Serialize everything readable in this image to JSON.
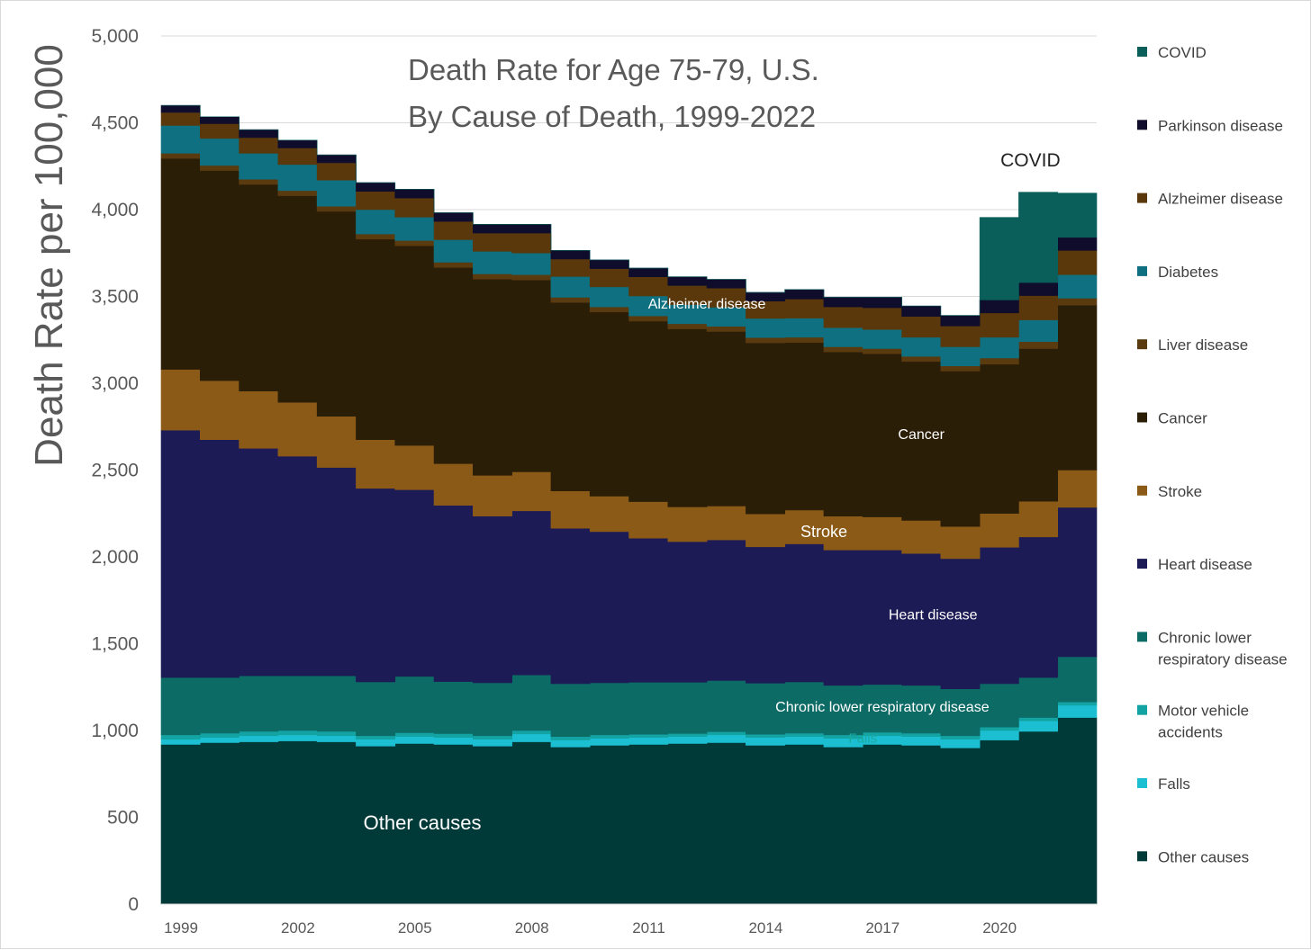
{
  "chart_data": {
    "type": "area",
    "stacked": true,
    "step": true,
    "title_lines": [
      "Death Rate for Age 75-79, U.S.",
      "By Cause of Death, 1999-2022"
    ],
    "ylabel": "Death Rate per 100,000",
    "xlabel": "",
    "ylim": [
      0,
      5000
    ],
    "yticks": [
      0,
      500,
      1000,
      1500,
      2000,
      2500,
      3000,
      3500,
      4000,
      4500,
      5000
    ],
    "ytick_labels": [
      "0",
      "500",
      "1,000",
      "1,500",
      "2,000",
      "2,500",
      "3,000",
      "3,500",
      "4,000",
      "4,500",
      "5,000"
    ],
    "grid": true,
    "legend_position": "right",
    "x": [
      1999,
      2000,
      2001,
      2002,
      2003,
      2004,
      2005,
      2006,
      2007,
      2008,
      2009,
      2010,
      2011,
      2012,
      2013,
      2014,
      2015,
      2016,
      2017,
      2018,
      2019,
      2020,
      2021,
      2022
    ],
    "xtick_labels": [
      "1999",
      "2002",
      "2005",
      "2008",
      "2011",
      "2014",
      "2017",
      "2020"
    ],
    "xtick_years": [
      1999,
      2002,
      2005,
      2008,
      2011,
      2014,
      2017,
      2020
    ],
    "series": [
      {
        "name": "Other causes",
        "color": "#003a38",
        "values": [
          920,
          930,
          935,
          940,
          935,
          910,
          925,
          920,
          910,
          935,
          905,
          915,
          920,
          925,
          930,
          915,
          920,
          905,
          920,
          915,
          900,
          945,
          995,
          1075
        ]
      },
      {
        "name": "Falls",
        "color": "#1cbfd1",
        "values": [
          30,
          30,
          35,
          35,
          35,
          40,
          40,
          40,
          40,
          45,
          40,
          40,
          40,
          40,
          45,
          45,
          45,
          50,
          50,
          50,
          50,
          55,
          60,
          70
        ]
      },
      {
        "name": "Motor vehicle accidents",
        "color": "#13a3a3",
        "values": [
          25,
          25,
          25,
          25,
          25,
          20,
          22,
          22,
          20,
          20,
          20,
          20,
          18,
          18,
          18,
          18,
          20,
          20,
          20,
          20,
          20,
          20,
          20,
          20
        ]
      },
      {
        "name": "Chronic lower respiratory disease",
        "color": "#0d6b66",
        "values": [
          330,
          320,
          320,
          315,
          320,
          310,
          325,
          300,
          305,
          320,
          305,
          300,
          300,
          295,
          295,
          295,
          295,
          285,
          275,
          275,
          270,
          250,
          230,
          260
        ]
      },
      {
        "name": "Heart disease",
        "color": "#1c1b55",
        "values": [
          1425,
          1370,
          1310,
          1265,
          1200,
          1115,
          1075,
          1015,
          960,
          945,
          895,
          870,
          830,
          810,
          810,
          785,
          795,
          780,
          775,
          760,
          750,
          785,
          810,
          860
        ]
      },
      {
        "name": "Stroke",
        "color": "#8b5a17",
        "values": [
          350,
          340,
          330,
          310,
          295,
          280,
          255,
          240,
          235,
          225,
          215,
          205,
          210,
          200,
          195,
          190,
          195,
          195,
          190,
          190,
          185,
          195,
          205,
          215
        ]
      },
      {
        "name": "Cancer",
        "color": "#2b1e07",
        "values": [
          1215,
          1210,
          1190,
          1190,
          1180,
          1155,
          1150,
          1130,
          1130,
          1105,
          1085,
          1060,
          1040,
          1025,
          1005,
          985,
          965,
          945,
          940,
          915,
          895,
          860,
          880,
          950
        ]
      },
      {
        "name": "Liver disease",
        "color": "#5a3a0f",
        "values": [
          30,
          30,
          30,
          30,
          30,
          30,
          30,
          30,
          30,
          30,
          30,
          30,
          30,
          30,
          30,
          30,
          30,
          30,
          30,
          30,
          30,
          35,
          40,
          40
        ]
      },
      {
        "name": "Diabetes",
        "color": "#0e7080",
        "values": [
          160,
          155,
          150,
          150,
          150,
          140,
          135,
          130,
          130,
          125,
          120,
          115,
          115,
          110,
          110,
          110,
          110,
          110,
          110,
          110,
          110,
          120,
          125,
          135
        ]
      },
      {
        "name": "Alzheimer disease",
        "color": "#5a380b",
        "values": [
          75,
          85,
          90,
          95,
          100,
          105,
          110,
          105,
          105,
          115,
          100,
          105,
          110,
          110,
          110,
          100,
          110,
          120,
          125,
          120,
          120,
          140,
          140,
          140
        ]
      },
      {
        "name": "Parkinson disease",
        "color": "#0f0c2c",
        "values": [
          40,
          40,
          45,
          45,
          45,
          50,
          50,
          50,
          50,
          50,
          50,
          50,
          50,
          50,
          50,
          50,
          55,
          55,
          60,
          60,
          60,
          75,
          75,
          75
        ]
      },
      {
        "name": "COVID",
        "color": "#0a5f5b",
        "values": [
          0,
          0,
          0,
          0,
          0,
          0,
          0,
          0,
          0,
          0,
          0,
          0,
          0,
          0,
          0,
          0,
          0,
          0,
          0,
          0,
          0,
          475,
          520,
          255
        ]
      }
    ],
    "legend_order": [
      "COVID",
      "Parkinson disease",
      "Alzheimer disease",
      "Diabetes",
      "Liver disease",
      "Cancer",
      "Stroke",
      "Heart disease",
      "Chronic lower respiratory disease",
      "Motor vehicle accidents",
      "Falls",
      "Other causes"
    ],
    "legend_lines": {
      "Chronic lower respiratory disease": [
        "Chronic lower",
        "respiratory disease"
      ],
      "Motor vehicle accidents": [
        "Motor vehicle",
        "accidents"
      ]
    },
    "annotations": [
      {
        "text": "Alzheimer disease",
        "x": 2013.0,
        "y": 3430,
        "color": "#ffffff",
        "size": 16
      },
      {
        "text": "Cancer",
        "x": 2018.5,
        "y": 2680,
        "color": "#ffffff",
        "size": 16
      },
      {
        "text": "Stroke",
        "x": 2016.0,
        "y": 2115,
        "color": "#ffffff",
        "size": 18
      },
      {
        "text": "Heart disease",
        "x": 2018.8,
        "y": 1640,
        "color": "#ffffff",
        "size": 16
      },
      {
        "text": "Chronic lower respiratory disease",
        "x": 2017.5,
        "y": 1110,
        "color": "#ffffff",
        "size": 16
      },
      {
        "text": "Falls",
        "x": 2017.0,
        "y": 930,
        "color": "#1aa9a0",
        "size": 15
      },
      {
        "text": "Other causes",
        "x": 2005.7,
        "y": 430,
        "color": "#ffffff",
        "size": 22
      },
      {
        "text": "COVID",
        "x": 2021.3,
        "y": 4250,
        "color": "#222222",
        "size": 21
      }
    ]
  }
}
